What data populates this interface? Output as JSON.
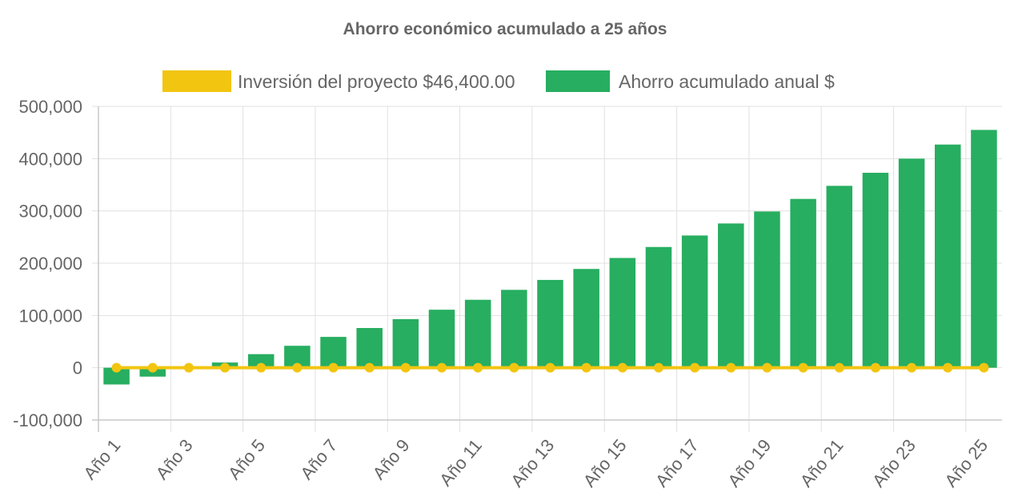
{
  "chart_data": {
    "type": "bar",
    "title": "Ahorro económico acumulado a 25 años",
    "xlabel": "",
    "ylabel": "",
    "ylim": [
      -100000,
      500000
    ],
    "yticks": [
      -100000,
      0,
      100000,
      200000,
      300000,
      400000,
      500000
    ],
    "ytick_labels": [
      "-100,000",
      "0",
      "100,000",
      "200,000",
      "300,000",
      "400,000",
      "500,000"
    ],
    "grid": true,
    "legend_position": "top",
    "categories": [
      "Año 1",
      "Año 2",
      "Año 3",
      "Año 4",
      "Año 5",
      "Año 6",
      "Año 7",
      "Año 8",
      "Año 9",
      "Año 10",
      "Año 11",
      "Año 12",
      "Año 13",
      "Año 14",
      "Año 15",
      "Año 16",
      "Año 17",
      "Año 18",
      "Año 19",
      "Año 20",
      "Año 21",
      "Año 22",
      "Año 23",
      "Año 24",
      "Año 25"
    ],
    "xtick_labels_shown": [
      "Año 1",
      "Año 3",
      "Año 5",
      "Año 7",
      "Año 9",
      "Año 11",
      "Año 13",
      "Año 15",
      "Año 17",
      "Año 19",
      "Año 21",
      "Año 23",
      "Año 25"
    ],
    "series": [
      {
        "name": "Inversión del proyecto $46,400.00",
        "type": "line",
        "color": "#f2c511",
        "values": [
          0,
          0,
          0,
          0,
          0,
          0,
          0,
          0,
          0,
          0,
          0,
          0,
          0,
          0,
          0,
          0,
          0,
          0,
          0,
          0,
          0,
          0,
          0,
          0,
          0
        ]
      },
      {
        "name": "Ahorro acumulado anual $",
        "type": "bar",
        "color": "#27ae60",
        "values": [
          -32000,
          -17000,
          -1000,
          10000,
          26000,
          42000,
          59000,
          76000,
          93000,
          111000,
          130000,
          149000,
          168000,
          189000,
          210000,
          231000,
          253000,
          276000,
          299000,
          323000,
          348000,
          373000,
          400000,
          427000,
          455000
        ]
      }
    ]
  }
}
